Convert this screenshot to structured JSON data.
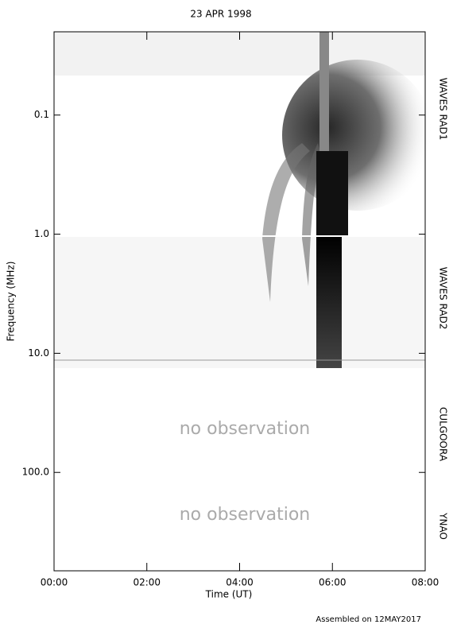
{
  "chart_data": {
    "type": "spectrogram",
    "title": "23 APR 1998",
    "x_label": "Time (UT)",
    "y_label": "Frequency (MHz)",
    "xlim": [
      0,
      8
    ],
    "xticks": [
      {
        "value": 0,
        "label": "00:00"
      },
      {
        "value": 2,
        "label": "02:00"
      },
      {
        "value": 4,
        "label": "04:00"
      },
      {
        "value": 6,
        "label": "06:00"
      },
      {
        "value": 8,
        "label": "08:00"
      }
    ],
    "ylim": [
      0.02,
      670
    ],
    "y_scale": "log",
    "y_inverted": true,
    "yticks": [
      0.1,
      {
        "value": 1,
        "label": "1.0"
      },
      {
        "value": 10,
        "label": "10.0"
      },
      {
        "value": 100,
        "label": "100.0"
      }
    ],
    "instruments": [
      "WAVES RAD1",
      "WAVES RAD2",
      "CULGOORA",
      "YNAO"
    ],
    "annotations": [
      "no observation",
      "no observation"
    ],
    "footer": "Assembled on 12MAY2017"
  }
}
